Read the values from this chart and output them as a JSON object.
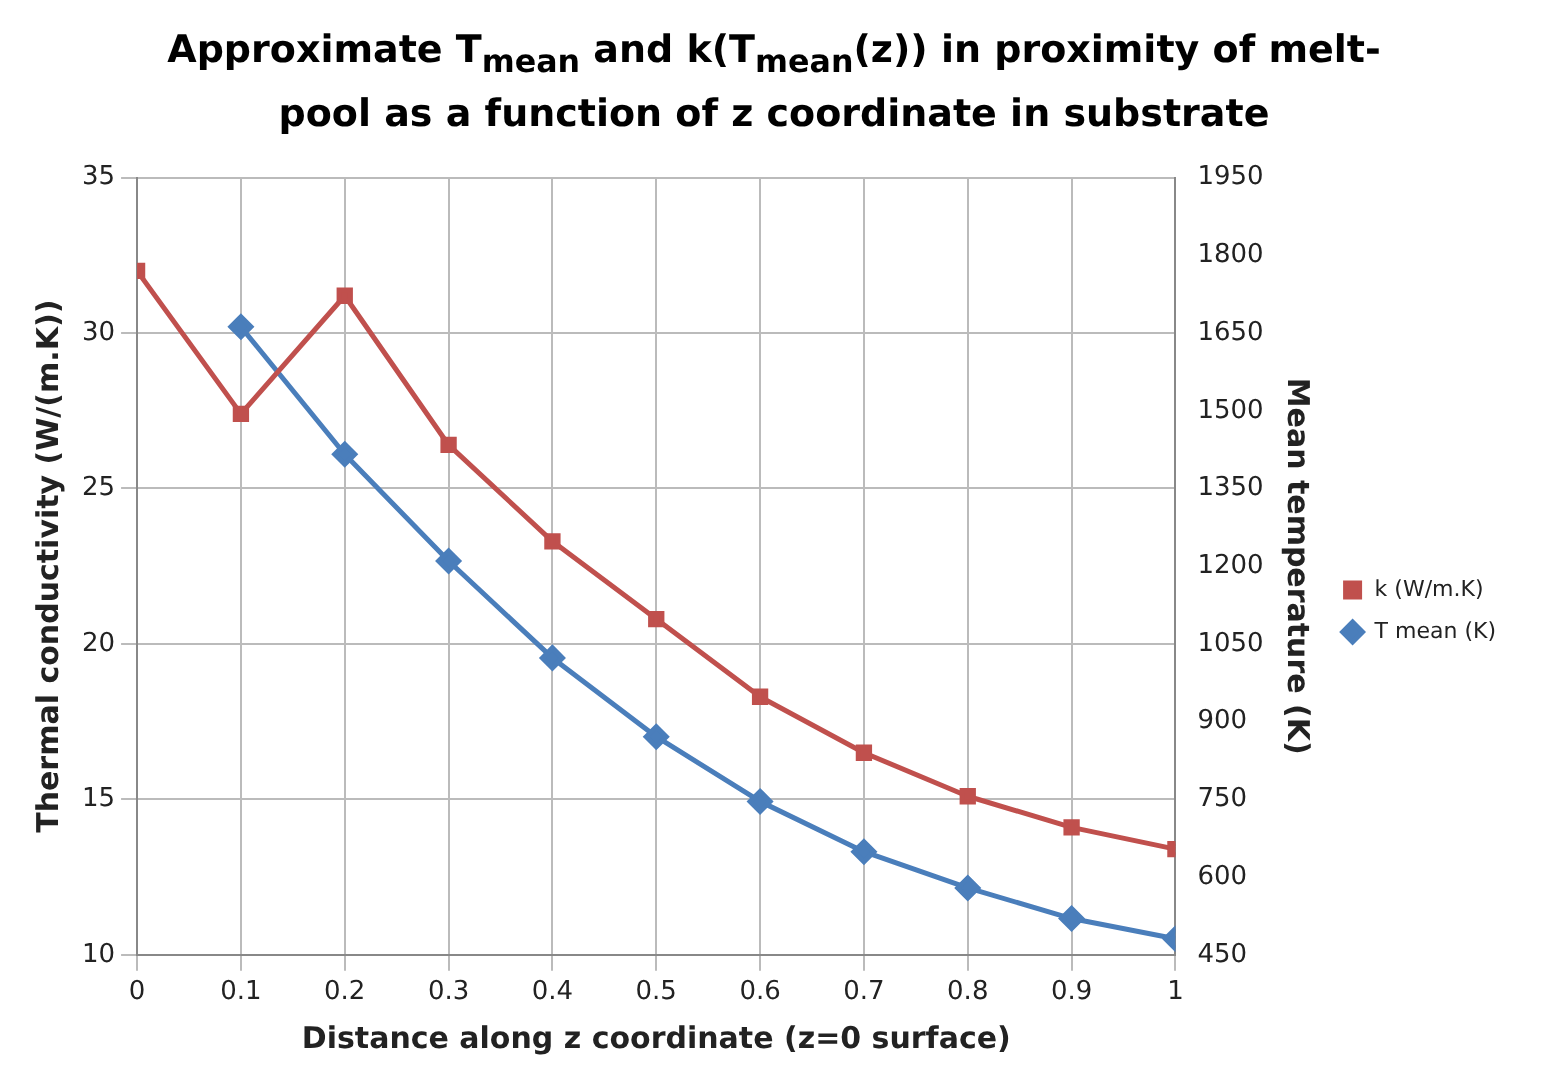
{
  "chart_data": {
    "type": "line",
    "title": "Approximate T$_{mean}$ and k(T$_{mean}$(z)) in proximity of melt-pool as a function of z coordinate in substrate",
    "xlabel": "Distance along z coordinate (z=0 surface)",
    "ylabel": "Thermal conductivity (W/(m.K))",
    "y2label": "Mean temperature (K)",
    "x": [
      0,
      0.1,
      0.2,
      0.3,
      0.4,
      0.5,
      0.6,
      0.7,
      0.8,
      0.9,
      1
    ],
    "xlim": [
      0,
      1
    ],
    "xticks": [
      0,
      0.1,
      0.2,
      0.3,
      0.4,
      0.5,
      0.6,
      0.7,
      0.8,
      0.9,
      1
    ],
    "ylim": [
      10,
      35
    ],
    "yticks": [
      10,
      15,
      20,
      25,
      30,
      35
    ],
    "y2lim": [
      450,
      1950
    ],
    "y2ticks": [
      450,
      600,
      750,
      900,
      1050,
      1200,
      1350,
      1500,
      1650,
      1800,
      1950
    ],
    "series": [
      {
        "name": "k (W/m.K)",
        "color": "#c0504d",
        "marker": "square",
        "values": [
          32,
          27.4,
          31.2,
          26.4,
          23.3,
          20.8,
          18.3,
          16.5,
          15.1,
          14.1,
          13.4
        ]
      },
      {
        "name": "T mean (K)",
        "color": "#4a7ebb",
        "marker": "diamond",
        "axis": "y2",
        "values": [
          null,
          1662,
          1416,
          1210,
          1023,
          871,
          746,
          649,
          579,
          520,
          481
        ]
      }
    ],
    "grid": true,
    "legend": "right"
  }
}
